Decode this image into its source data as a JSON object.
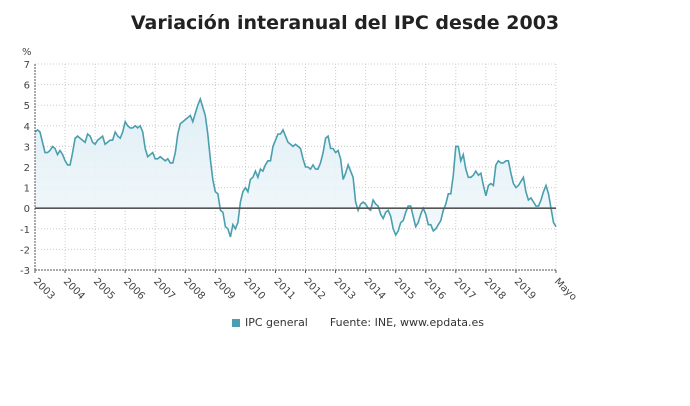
{
  "chart_data": {
    "type": "area",
    "title": "Variación interanual del IPC desde 2003",
    "ylabel": "%",
    "ylim": [
      -3,
      7
    ],
    "yticks": [
      7,
      6,
      5,
      4,
      3,
      2,
      1,
      0,
      -1,
      -2,
      -3
    ],
    "xticks": [
      "2003",
      "2004",
      "2005",
      "2006",
      "2007",
      "2008",
      "2009",
      "2010",
      "2011",
      "2012",
      "2013",
      "2014",
      "2015",
      "2016",
      "2017",
      "2018",
      "2019",
      "Mayo"
    ],
    "x_range": [
      "2003-01",
      "2020-05"
    ],
    "grid": true,
    "legend_position": "bottom",
    "series": [
      {
        "name": "IPC general",
        "color": "#4a9fae",
        "start": "2003-01",
        "frequency": "monthly",
        "values": [
          3.7,
          3.8,
          3.7,
          3.2,
          2.7,
          2.7,
          2.8,
          3.0,
          2.9,
          2.6,
          2.8,
          2.6,
          2.3,
          2.1,
          2.1,
          2.7,
          3.4,
          3.5,
          3.4,
          3.3,
          3.2,
          3.6,
          3.5,
          3.2,
          3.1,
          3.3,
          3.4,
          3.5,
          3.1,
          3.2,
          3.3,
          3.3,
          3.7,
          3.5,
          3.4,
          3.7,
          4.2,
          4.0,
          3.9,
          3.9,
          4.0,
          3.9,
          4.0,
          3.7,
          2.9,
          2.5,
          2.6,
          2.7,
          2.4,
          2.4,
          2.5,
          2.4,
          2.3,
          2.4,
          2.2,
          2.2,
          2.7,
          3.6,
          4.1,
          4.2,
          4.3,
          4.4,
          4.5,
          4.2,
          4.6,
          5.0,
          5.3,
          4.9,
          4.5,
          3.6,
          2.4,
          1.4,
          0.8,
          0.7,
          -0.1,
          -0.2,
          -0.9,
          -1.0,
          -1.4,
          -0.8,
          -1.0,
          -0.7,
          0.3,
          0.8,
          1.0,
          0.8,
          1.4,
          1.5,
          1.8,
          1.5,
          1.9,
          1.8,
          2.1,
          2.3,
          2.3,
          3.0,
          3.3,
          3.6,
          3.6,
          3.8,
          3.5,
          3.2,
          3.1,
          3.0,
          3.1,
          3.0,
          2.9,
          2.4,
          2.0,
          2.0,
          1.9,
          2.1,
          1.9,
          1.9,
          2.2,
          2.7,
          3.4,
          3.5,
          2.9,
          2.9,
          2.7,
          2.8,
          2.4,
          1.4,
          1.7,
          2.1,
          1.8,
          1.5,
          0.3,
          -0.1,
          0.2,
          0.3,
          0.2,
          0.0,
          -0.1,
          0.4,
          0.2,
          0.1,
          -0.3,
          -0.5,
          -0.2,
          -0.1,
          -0.4,
          -1.0,
          -1.3,
          -1.1,
          -0.7,
          -0.6,
          -0.2,
          0.1,
          0.1,
          -0.4,
          -0.9,
          -0.7,
          -0.3,
          0.0,
          -0.3,
          -0.8,
          -0.8,
          -1.1,
          -1.0,
          -0.8,
          -0.6,
          -0.1,
          0.2,
          0.7,
          0.7,
          1.6,
          3.0,
          3.0,
          2.3,
          2.6,
          1.9,
          1.5,
          1.5,
          1.6,
          1.8,
          1.6,
          1.7,
          1.1,
          0.6,
          1.1,
          1.2,
          1.1,
          2.1,
          2.3,
          2.2,
          2.2,
          2.3,
          2.3,
          1.7,
          1.2,
          1.0,
          1.1,
          1.3,
          1.5,
          0.8,
          0.4,
          0.5,
          0.3,
          0.1,
          0.1,
          0.4,
          0.8,
          1.1,
          0.7,
          0.0,
          -0.7,
          -0.9
        ]
      }
    ],
    "source": "Fuente: INE, www.epdata.es"
  }
}
